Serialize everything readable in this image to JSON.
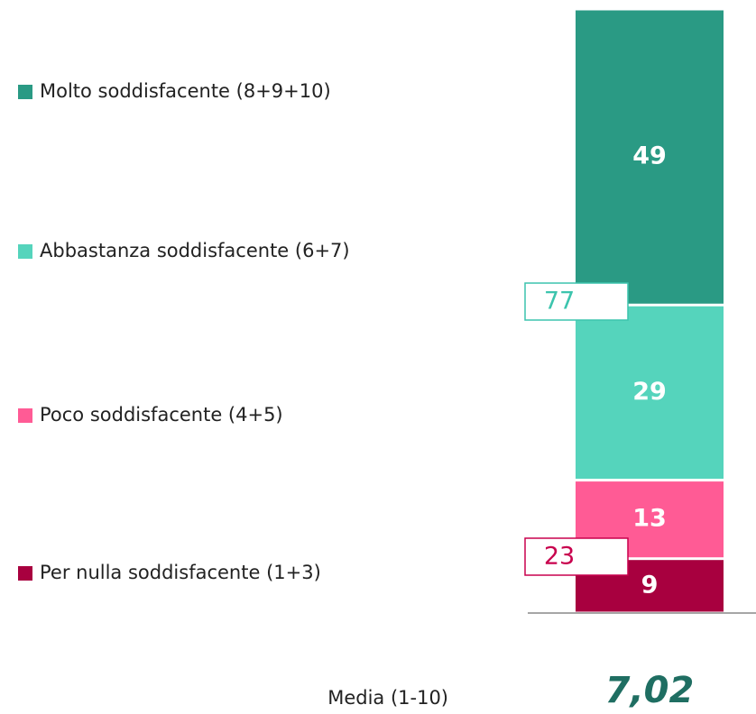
{
  "chart_data": {
    "type": "stacked-bar",
    "series": [
      {
        "name": "Molto soddisfacente (8+9+10)",
        "color": "#2a9a84",
        "values": [
          49
        ]
      },
      {
        "name": "Abbastanza soddisfacente (6+7)",
        "color": "#55d4bc",
        "values": [
          29
        ]
      },
      {
        "name": "Poco soddisfacente (4+5)",
        "color": "#ff5b95",
        "values": [
          13
        ]
      },
      {
        "name": "Per nulla soddisfacente (1+3)",
        "color": "#a8003f",
        "values": [
          9
        ]
      }
    ],
    "annotations": [
      {
        "value": 77,
        "color": "#3cc4ad"
      },
      {
        "value": 23,
        "color": "#c8004d"
      }
    ],
    "mean": {
      "label": "Media (1-10)",
      "value": {
        "value": 7.02,
        "label": "7,02"
      },
      "color": "#1f6e62"
    }
  }
}
